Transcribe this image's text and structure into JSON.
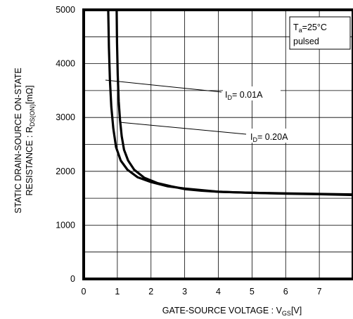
{
  "chart_data": {
    "type": "line",
    "xlabel": {
      "main": "GATE-SOURCE VOLTAGE : V",
      "sub": "GS",
      "unit": "[V]"
    },
    "ylabel": {
      "line1": "STATIC DRAIN-SOURCE ON-STATE",
      "line2_main": "RESISTANCE : R",
      "line2_sub": "DS(ON)",
      "line2_unit": "[mΩ]"
    },
    "xlim": [
      0,
      8
    ],
    "ylim": [
      0,
      5000
    ],
    "xticks": [
      "0",
      "1",
      "2",
      "3",
      "4",
      "5",
      "6",
      "7"
    ],
    "yticks": [
      "0",
      "1000",
      "2000",
      "3000",
      "4000",
      "5000"
    ],
    "grid": true,
    "conditions": {
      "temp_main": "T",
      "temp_sub": "a",
      "temp_value": "=25°C",
      "mode": "pulsed"
    },
    "series": [
      {
        "name": "I_D= 0.01A",
        "label_main": "I",
        "label_sub": "D",
        "label_value": "= 0.01A",
        "points": [
          [
            0.73,
            5000
          ],
          [
            0.75,
            4300
          ],
          [
            0.78,
            3700
          ],
          [
            0.82,
            3200
          ],
          [
            0.88,
            2800
          ],
          [
            0.96,
            2450
          ],
          [
            1.1,
            2200
          ],
          [
            1.3,
            2030
          ],
          [
            1.6,
            1890
          ],
          [
            2.0,
            1800
          ],
          [
            2.5,
            1720
          ],
          [
            3.0,
            1680
          ],
          [
            3.5,
            1650
          ],
          [
            4.0,
            1620
          ],
          [
            4.5,
            1610
          ],
          [
            5.0,
            1600
          ],
          [
            6.0,
            1590
          ],
          [
            7.0,
            1580
          ],
          [
            8.0,
            1570
          ]
        ]
      },
      {
        "name": "I_D= 0.20A",
        "label_main": "I",
        "label_sub": "D",
        "label_value": "= 0.20A",
        "points": [
          [
            0.98,
            5000
          ],
          [
            0.99,
            4400
          ],
          [
            1.01,
            3800
          ],
          [
            1.04,
            3300
          ],
          [
            1.08,
            2950
          ],
          [
            1.13,
            2650
          ],
          [
            1.2,
            2400
          ],
          [
            1.32,
            2200
          ],
          [
            1.5,
            2030
          ],
          [
            1.8,
            1880
          ],
          [
            2.2,
            1780
          ],
          [
            2.6,
            1720
          ],
          [
            3.0,
            1670
          ],
          [
            3.5,
            1640
          ],
          [
            4.0,
            1620
          ],
          [
            4.5,
            1610
          ],
          [
            5.0,
            1600
          ],
          [
            6.0,
            1585
          ],
          [
            7.0,
            1575
          ],
          [
            8.0,
            1560
          ]
        ]
      }
    ]
  }
}
